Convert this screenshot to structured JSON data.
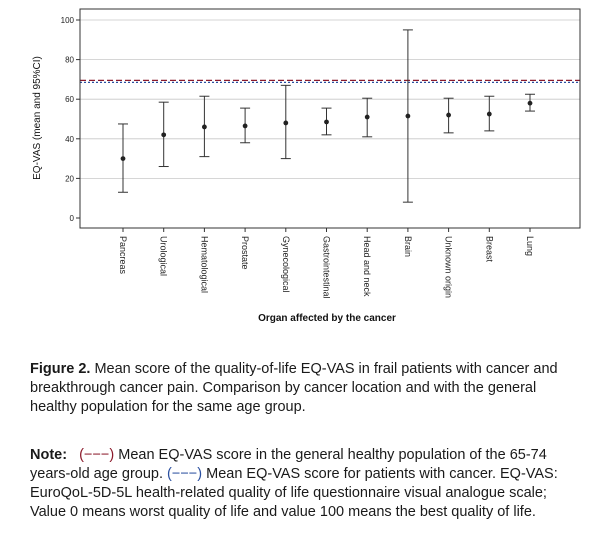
{
  "chart_data": {
    "type": "errorbar",
    "xlabel": "Organ affected by the cancer",
    "ylabel": "EQ-VAS (mean and 95%CI)",
    "ylim": [
      0,
      100
    ],
    "yticks": [
      0,
      20,
      40,
      60,
      80,
      100
    ],
    "grid": "horizontal",
    "categories": [
      "Pancreas",
      "Urological",
      "Hematological",
      "Prostate",
      "Gynecological",
      "Gastrointestinal",
      "Head and neck",
      "Brain",
      "Unknown origin",
      "Breast",
      "Lung"
    ],
    "series": [
      {
        "mean": [
          30,
          42,
          46,
          46.5,
          48,
          48.5,
          51,
          51.5,
          52,
          52.5,
          58
        ],
        "lower": [
          13,
          26,
          31,
          38,
          30,
          42,
          41,
          8,
          43,
          44,
          54
        ],
        "upper": [
          47.5,
          58.5,
          61.5,
          55.5,
          67,
          55.5,
          60.5,
          95,
          60.5,
          61.5,
          62.5
        ]
      }
    ],
    "reference_lines": [
      {
        "value": 69.5,
        "color": "#8b1a2b",
        "style": "dashed"
      },
      {
        "value": 68.5,
        "color": "#2a4fa0",
        "style": "dotted"
      }
    ]
  },
  "caption": {
    "figure_label": "Figure 2.",
    "figure_text": " Mean score of the quality-of-life EQ-VAS in frail patients with cancer and breakthrough cancer pain. Comparison by cancer location and with the general healthy population for the same age group.",
    "note_label": "Note:",
    "note_ref1": "(−−−)",
    "note_text1": " Mean EQ-VAS score in the general healthy population of the 65-74 years-old age group. ",
    "note_ref2": "(−−−)",
    "note_text2": " Mean EQ-VAS score for patients with cancer. EQ-VAS: EuroQoL-5D-5L health-related quality of life questionnaire visual analogue scale; Value 0 means worst quality of life and value 100 means the best quality of life."
  }
}
